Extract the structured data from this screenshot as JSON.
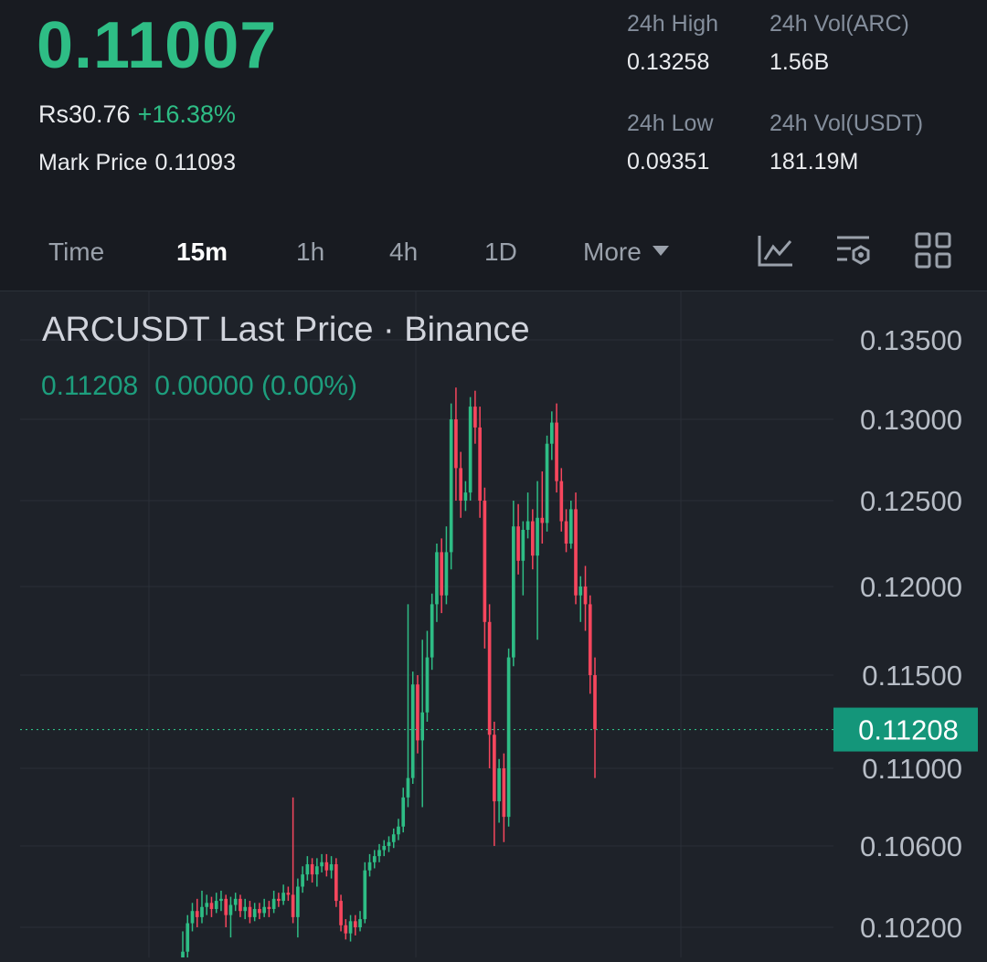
{
  "ticker": {
    "last_price": "0.11007",
    "fiat_price": "Rs30.76",
    "change_pct": "+16.38%",
    "mark_price_label": "Mark Price",
    "mark_price": "0.11093"
  },
  "stats": {
    "high_label": "24h High",
    "high": "0.13258",
    "vol_base_label": "24h Vol(ARC)",
    "vol_base": "1.56B",
    "low_label": "24h Low",
    "low": "0.09351",
    "vol_quote_label": "24h Vol(USDT)",
    "vol_quote": "181.19M"
  },
  "intervals": [
    {
      "label": "Time",
      "active": false
    },
    {
      "label": "15m",
      "active": true
    },
    {
      "label": "1h",
      "active": false
    },
    {
      "label": "4h",
      "active": false
    },
    {
      "label": "1D",
      "active": false
    },
    {
      "label": "More",
      "active": false
    }
  ],
  "toolbar_icons": [
    "indicator-chart-icon",
    "chart-settings-icon",
    "grid-layout-icon"
  ],
  "colors": {
    "up": "#2ebd85",
    "down": "#f6465d",
    "background": "#1e2229",
    "header": "#181b21"
  },
  "chart_data": {
    "type": "candlestick",
    "title": "ARCUSDT Last Price · Binance",
    "legend_value": "0.11208",
    "legend_change": "0.00000 (0.00%)",
    "current_price_label": "0.11208",
    "current_price": 0.11208,
    "y_ticks": [
      {
        "label": "0.13500",
        "value": 0.135
      },
      {
        "label": "0.13000",
        "value": 0.13
      },
      {
        "label": "0.12500",
        "value": 0.125
      },
      {
        "label": "0.12000",
        "value": 0.12
      },
      {
        "label": "0.11500",
        "value": 0.115
      },
      {
        "label": "0.11000",
        "value": 0.11
      },
      {
        "label": "0.10600",
        "value": 0.106
      },
      {
        "label": "0.10200",
        "value": 0.102
      }
    ],
    "grid": true,
    "candles": [
      [
        0.1001,
        0.1008,
        0.1018,
        0.0998
      ],
      [
        0.1008,
        0.1022,
        0.1026,
        0.1005
      ],
      [
        0.1022,
        0.1028,
        0.1032,
        0.1018
      ],
      [
        0.1028,
        0.1025,
        0.1034,
        0.102
      ],
      [
        0.1025,
        0.103,
        0.1038,
        0.1022
      ],
      [
        0.103,
        0.1032,
        0.1036,
        0.1026
      ],
      [
        0.1032,
        0.1029,
        0.1035,
        0.1025
      ],
      [
        0.1029,
        0.1033,
        0.1037,
        0.1027
      ],
      [
        0.1033,
        0.1034,
        0.1038,
        0.1028
      ],
      [
        0.1034,
        0.1026,
        0.1036,
        0.102
      ],
      [
        0.1026,
        0.1031,
        0.1035,
        0.1015
      ],
      [
        0.1031,
        0.1034,
        0.1037,
        0.1028
      ],
      [
        0.1034,
        0.1028,
        0.1036,
        0.1025
      ],
      [
        0.1028,
        0.103,
        0.1034,
        0.1024
      ],
      [
        0.103,
        0.1025,
        0.1033,
        0.1022
      ],
      [
        0.1025,
        0.1029,
        0.1032,
        0.1023
      ],
      [
        0.1029,
        0.1027,
        0.1032,
        0.1024
      ],
      [
        0.1027,
        0.103,
        0.1034,
        0.1025
      ],
      [
        0.103,
        0.1029,
        0.1033,
        0.1025
      ],
      [
        0.1029,
        0.1034,
        0.1038,
        0.1027
      ],
      [
        0.1034,
        0.1033,
        0.1037,
        0.103
      ],
      [
        0.1033,
        0.1037,
        0.1041,
        0.1031
      ],
      [
        0.1037,
        0.1036,
        0.104,
        0.1033
      ],
      [
        0.1036,
        0.1025,
        0.1085,
        0.1022
      ],
      [
        0.1025,
        0.104,
        0.1044,
        0.1015
      ],
      [
        0.104,
        0.1046,
        0.105,
        0.1037
      ],
      [
        0.1046,
        0.1051,
        0.1055,
        0.1043
      ],
      [
        0.1051,
        0.1046,
        0.1054,
        0.1042
      ],
      [
        0.1046,
        0.105,
        0.1054,
        0.104
      ],
      [
        0.105,
        0.1052,
        0.1056,
        0.1047
      ],
      [
        0.1052,
        0.1048,
        0.1056,
        0.1045
      ],
      [
        0.1048,
        0.1051,
        0.1055,
        0.1044
      ],
      [
        0.1051,
        0.1033,
        0.1054,
        0.103
      ],
      [
        0.1033,
        0.1021,
        0.1036,
        0.1018
      ],
      [
        0.1021,
        0.1017,
        0.1024,
        0.1014
      ],
      [
        0.1017,
        0.1023,
        0.1026,
        0.1013
      ],
      [
        0.1023,
        0.102,
        0.1026,
        0.1016
      ],
      [
        0.102,
        0.1024,
        0.1028,
        0.1018
      ],
      [
        0.1024,
        0.1048,
        0.1052,
        0.1022
      ],
      [
        0.1048,
        0.1052,
        0.1056,
        0.1045
      ],
      [
        0.1052,
        0.1055,
        0.1058,
        0.1049
      ],
      [
        0.1055,
        0.1058,
        0.1061,
        0.1052
      ],
      [
        0.1058,
        0.106,
        0.1063,
        0.1055
      ],
      [
        0.106,
        0.1062,
        0.1065,
        0.1057
      ],
      [
        0.1062,
        0.1066,
        0.1069,
        0.1059
      ],
      [
        0.1066,
        0.107,
        0.1074,
        0.1063
      ],
      [
        0.107,
        0.1085,
        0.109,
        0.1067
      ],
      [
        0.1085,
        0.1095,
        0.119,
        0.108
      ],
      [
        0.1095,
        0.1145,
        0.1152,
        0.1092
      ],
      [
        0.1145,
        0.1115,
        0.115,
        0.1108
      ],
      [
        0.1115,
        0.113,
        0.117,
        0.108
      ],
      [
        0.113,
        0.116,
        0.1175,
        0.1125
      ],
      [
        0.116,
        0.119,
        0.1196,
        0.1153
      ],
      [
        0.119,
        0.122,
        0.1225,
        0.118
      ],
      [
        0.122,
        0.1195,
        0.1228,
        0.1185
      ],
      [
        0.1195,
        0.122,
        0.1235,
        0.119
      ],
      [
        0.122,
        0.13,
        0.131,
        0.121
      ],
      [
        0.13,
        0.127,
        0.132,
        0.125
      ],
      [
        0.127,
        0.125,
        0.128,
        0.124
      ],
      [
        0.125,
        0.1255,
        0.1262,
        0.1244
      ],
      [
        0.1255,
        0.1308,
        0.1314,
        0.125
      ],
      [
        0.1308,
        0.1295,
        0.1318,
        0.1285
      ],
      [
        0.1295,
        0.125,
        0.1308,
        0.124
      ],
      [
        0.125,
        0.118,
        0.1258,
        0.1165
      ],
      [
        0.118,
        0.1118,
        0.119,
        0.11
      ],
      [
        0.1118,
        0.1083,
        0.1125,
        0.106
      ],
      [
        0.1083,
        0.11,
        0.1105,
        0.1072
      ],
      [
        0.11,
        0.1075,
        0.1108,
        0.1062
      ],
      [
        0.1075,
        0.116,
        0.1165,
        0.107
      ],
      [
        0.116,
        0.1235,
        0.125,
        0.1155
      ],
      [
        0.1235,
        0.1215,
        0.1248,
        0.1207
      ],
      [
        0.1215,
        0.1233,
        0.1238,
        0.1195
      ],
      [
        0.1233,
        0.1238,
        0.1255,
        0.1228
      ],
      [
        0.1238,
        0.1218,
        0.1245,
        0.121
      ],
      [
        0.1218,
        0.124,
        0.1262,
        0.117
      ],
      [
        0.124,
        0.1237,
        0.1268,
        0.1225
      ],
      [
        0.1237,
        0.1285,
        0.129,
        0.1232
      ],
      [
        0.1285,
        0.1298,
        0.1305,
        0.1275
      ],
      [
        0.1298,
        0.1262,
        0.131,
        0.1255
      ],
      [
        0.1262,
        0.1238,
        0.127,
        0.1232
      ],
      [
        0.1238,
        0.1225,
        0.1245,
        0.122
      ],
      [
        0.1225,
        0.1245,
        0.125,
        0.1222
      ],
      [
        0.1245,
        0.1195,
        0.1255,
        0.119
      ],
      [
        0.1195,
        0.12,
        0.1206,
        0.118
      ],
      [
        0.12,
        0.119,
        0.1212,
        0.1175
      ],
      [
        0.119,
        0.115,
        0.1195,
        0.114
      ],
      [
        0.115,
        0.1121,
        0.116,
        0.1095
      ]
    ]
  }
}
